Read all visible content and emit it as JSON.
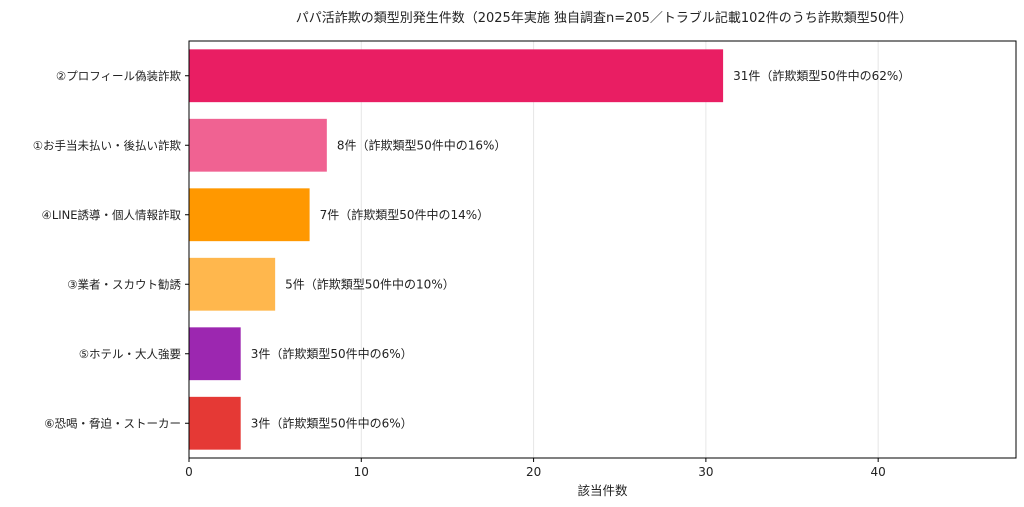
{
  "chart_data": {
    "type": "bar",
    "orientation": "horizontal",
    "title": "パパ活詐欺の類型別発生件数（2025年実施 独自調査n=205／トラブル記載102件のうち詐欺類型50件）",
    "xlabel": "該当件数",
    "ylabel": "",
    "xlim": [
      0,
      48
    ],
    "xticks": [
      0,
      10,
      20,
      30,
      40
    ],
    "grid": "vertical",
    "categories": [
      "②プロフィール偽装詐欺",
      "①お手当未払い・後払い詐欺",
      "④LINE誘導・個人情報詐取",
      "③業者・スカウト勧誘",
      "⑤ホテル・大人強要",
      "⑥恐喝・脅迫・ストーカー"
    ],
    "values": [
      31,
      8,
      7,
      5,
      3,
      3
    ],
    "data_labels": [
      "31件（詐欺類型50件中の62%）",
      "8件（詐欺類型50件中の16%）",
      "7件（詐欺類型50件中の14%）",
      "5件（詐欺類型50件中の10%）",
      "3件（詐欺類型50件中の6%）",
      "3件（詐欺類型50件中の6%）"
    ],
    "colors": [
      "#e91e63",
      "#f06292",
      "#ff9800",
      "#ffb74d",
      "#9c27b0",
      "#e53935"
    ]
  }
}
